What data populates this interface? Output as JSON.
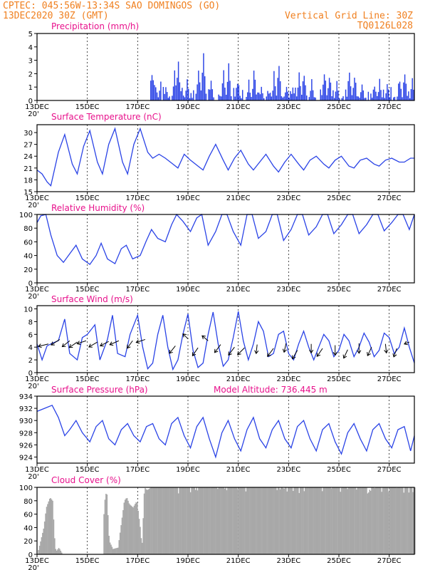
{
  "header": {
    "left_line1": "CPTEC:   045:56W-13:34S  SAO DOMINGOS (GO)",
    "left_line2": "13DEC2020 30Z (GMT)",
    "right_line1": "Vertical Grid Line: 30Z",
    "right_line2": "TQ0126L028"
  },
  "colors": {
    "header": "#f08020",
    "titles": "#e8128c",
    "series": "#2a43e6",
    "bars": "#2a43e6",
    "cloud": "#a8a8a8"
  },
  "x_axis": {
    "labels": [
      "13DEC",
      "15DEC",
      "17DEC",
      "19DEC",
      "21DEC",
      "23DEC",
      "25DEC",
      "27DEC"
    ],
    "edge_label": "20'"
  },
  "chart_data": [
    {
      "type": "bar",
      "title": "Precipitation (mm/h)",
      "ylim": [
        0,
        5
      ],
      "yticks": [
        0,
        1,
        2,
        3,
        4,
        5
      ],
      "bursts": [
        {
          "day": 4.55,
          "peak": 3.4
        },
        {
          "day": 4.6,
          "peak": 2.8
        },
        {
          "day": 5.1,
          "peak": 1.4
        },
        {
          "day": 5.45,
          "peak": 2.9
        },
        {
          "day": 5.6,
          "peak": 4.3
        },
        {
          "day": 5.95,
          "peak": 1.8
        },
        {
          "day": 6.4,
          "peak": 3.1
        },
        {
          "day": 6.6,
          "peak": 4.9
        },
        {
          "day": 6.9,
          "peak": 1.5
        },
        {
          "day": 7.4,
          "peak": 2.6
        },
        {
          "day": 7.6,
          "peak": 3.5
        },
        {
          "day": 7.95,
          "peak": 2.2
        },
        {
          "day": 8.4,
          "peak": 1.7
        },
        {
          "day": 8.6,
          "peak": 2.9
        },
        {
          "day": 8.9,
          "peak": 1.5
        },
        {
          "day": 9.4,
          "peak": 2.5
        },
        {
          "day": 9.6,
          "peak": 3.0
        },
        {
          "day": 9.9,
          "peak": 1.9
        },
        {
          "day": 10.4,
          "peak": 2.2
        },
        {
          "day": 10.6,
          "peak": 2.6
        },
        {
          "day": 10.9,
          "peak": 1.6
        },
        {
          "day": 11.4,
          "peak": 2.7
        },
        {
          "day": 11.6,
          "peak": 2.3
        },
        {
          "day": 11.9,
          "peak": 1.9
        },
        {
          "day": 12.4,
          "peak": 2.6
        },
        {
          "day": 12.6,
          "peak": 2.4
        },
        {
          "day": 12.9,
          "peak": 1.7
        },
        {
          "day": 13.4,
          "peak": 2.0
        },
        {
          "day": 13.6,
          "peak": 2.1
        },
        {
          "day": 13.9,
          "peak": 1.5
        },
        {
          "day": 14.4,
          "peak": 2.2
        },
        {
          "day": 14.6,
          "peak": 2.4
        },
        {
          "day": 14.9,
          "peak": 1.7
        }
      ]
    },
    {
      "type": "line",
      "title": "Surface Temperature (nC)",
      "ylim": [
        15,
        32
      ],
      "yticks": [
        15,
        18,
        21,
        24,
        27,
        30
      ],
      "x": [
        0,
        0.2,
        0.4,
        0.55,
        0.85,
        1.1,
        1.4,
        1.6,
        1.85,
        2.1,
        2.4,
        2.6,
        2.85,
        3.1,
        3.4,
        3.6,
        3.85,
        4.1,
        4.4,
        4.6,
        4.85,
        5.1,
        5.4,
        5.6,
        5.85,
        6.1,
        6.4,
        6.6,
        6.85,
        7.1,
        7.4,
        7.6,
        7.85,
        8.1,
        8.4,
        8.6,
        8.85,
        9.1,
        9.4,
        9.6,
        9.85,
        10.1,
        10.4,
        10.6,
        10.85,
        11.1,
        11.4,
        11.6,
        11.85,
        12.1,
        12.4,
        12.6,
        12.85,
        13.1,
        13.4,
        13.6,
        13.85,
        14.1,
        14.4,
        14.6,
        14.85,
        15.0
      ],
      "y": [
        20.5,
        19.5,
        17.5,
        16.5,
        25.0,
        29.5,
        22.0,
        19.5,
        26.5,
        30.5,
        22.5,
        19.5,
        27.0,
        31.0,
        22.5,
        19.5,
        27.0,
        31.0,
        25.0,
        23.5,
        24.5,
        23.5,
        22.0,
        21.0,
        24.5,
        23.0,
        21.5,
        20.5,
        24.0,
        27.0,
        23.0,
        20.5,
        23.5,
        25.5,
        22.0,
        20.5,
        22.5,
        24.5,
        21.5,
        20.0,
        22.5,
        24.5,
        22.0,
        20.5,
        23.0,
        24.0,
        22.0,
        21.0,
        23.0,
        24.0,
        21.5,
        21.0,
        23.0,
        23.5,
        22.0,
        21.5,
        23.0,
        23.5,
        22.5,
        22.5,
        23.5,
        23.5
      ]
    },
    {
      "type": "line",
      "title": "Relative Humidity (%)",
      "ylim": [
        0,
        100
      ],
      "yticks": [
        0,
        20,
        40,
        60,
        80,
        100
      ],
      "x": [
        0,
        0.15,
        0.35,
        0.55,
        0.8,
        1.05,
        1.35,
        1.55,
        1.8,
        2.1,
        2.35,
        2.55,
        2.8,
        3.1,
        3.35,
        3.55,
        3.8,
        4.1,
        4.35,
        4.55,
        4.8,
        5.1,
        5.35,
        5.55,
        5.8,
        6.1,
        6.35,
        6.55,
        6.8,
        7.1,
        7.35,
        7.55,
        7.8,
        8.1,
        8.35,
        8.55,
        8.8,
        9.1,
        9.35,
        9.55,
        9.8,
        10.1,
        10.35,
        10.55,
        10.8,
        11.1,
        11.35,
        11.55,
        11.8,
        12.1,
        12.35,
        12.55,
        12.8,
        13.1,
        13.35,
        13.55,
        13.8,
        14.1,
        14.35,
        14.55,
        14.8,
        15.0
      ],
      "y": [
        88,
        98,
        100,
        70,
        40,
        30,
        45,
        55,
        35,
        27,
        40,
        58,
        35,
        28,
        50,
        55,
        35,
        40,
        62,
        78,
        65,
        60,
        85,
        100,
        90,
        75,
        95,
        100,
        55,
        75,
        100,
        100,
        75,
        55,
        100,
        100,
        65,
        75,
        100,
        100,
        62,
        78,
        100,
        100,
        70,
        82,
        100,
        100,
        72,
        85,
        100,
        100,
        72,
        85,
        100,
        100,
        76,
        88,
        100,
        100,
        78,
        100
      ]
    },
    {
      "type": "line",
      "title": "Surface Wind (m/s)",
      "ylim": [
        0,
        10.5
      ],
      "yticks": [
        0,
        2,
        4,
        6,
        8,
        10
      ],
      "x": [
        0,
        0.2,
        0.4,
        0.6,
        0.85,
        1.1,
        1.3,
        1.6,
        1.8,
        2.0,
        2.3,
        2.5,
        2.8,
        3.0,
        3.2,
        3.5,
        3.7,
        4.0,
        4.2,
        4.4,
        4.6,
        4.8,
        5.0,
        5.2,
        5.4,
        5.6,
        5.8,
        6.0,
        6.2,
        6.4,
        6.6,
        6.8,
        7.0,
        7.2,
        7.4,
        7.6,
        7.8,
        8.0,
        8.2,
        8.4,
        8.6,
        8.8,
        9.0,
        9.2,
        9.4,
        9.6,
        9.8,
        10.0,
        10.2,
        10.4,
        10.6,
        10.8,
        11.0,
        11.2,
        11.4,
        11.6,
        11.8,
        12.0,
        12.2,
        12.4,
        12.6,
        12.8,
        13.0,
        13.2,
        13.4,
        13.6,
        13.8,
        14.0,
        14.2,
        14.4,
        14.6,
        14.8,
        15.0
      ],
      "y": [
        4.5,
        2.0,
        4.2,
        4.6,
        5.0,
        8.4,
        3.0,
        2.0,
        5.5,
        6.0,
        7.5,
        2.0,
        5.2,
        9.0,
        3.0,
        2.5,
        6.0,
        9.0,
        4.0,
        0.6,
        1.5,
        6.0,
        9.0,
        4.0,
        0.5,
        2.0,
        6.0,
        9.2,
        3.5,
        0.8,
        1.5,
        6.0,
        9.5,
        4.5,
        1.0,
        2.0,
        5.5,
        9.6,
        5.0,
        2.0,
        4.5,
        8.0,
        6.5,
        2.5,
        3.0,
        6.0,
        6.5,
        3.0,
        2.0,
        4.5,
        6.5,
        4.0,
        2.0,
        4.0,
        6.0,
        5.0,
        2.5,
        3.5,
        6.0,
        5.0,
        2.5,
        4.0,
        6.2,
        4.8,
        2.5,
        3.5,
        6.2,
        5.5,
        3.0,
        4.0,
        7.0,
        4.0,
        1.5
      ],
      "vectors": [
        {
          "day": 0.45,
          "speed": 4.5,
          "u": -1.0,
          "v": -0.25
        },
        {
          "day": 0.9,
          "speed": 5.2,
          "u": -0.85,
          "v": -0.55
        },
        {
          "day": 1.3,
          "speed": 5.0,
          "u": -0.75,
          "v": -0.6
        },
        {
          "day": 1.6,
          "speed": 4.8,
          "u": -0.8,
          "v": -0.55
        },
        {
          "day": 1.95,
          "speed": 5.0,
          "u": -0.9,
          "v": -0.3
        },
        {
          "day": 2.4,
          "speed": 4.8,
          "u": -0.85,
          "v": -0.5
        },
        {
          "day": 2.85,
          "speed": 4.9,
          "u": -0.85,
          "v": -0.45
        },
        {
          "day": 3.25,
          "speed": 5.0,
          "u": -0.9,
          "v": -0.4
        },
        {
          "day": 3.8,
          "speed": 5.0,
          "u": -0.55,
          "v": -0.75
        },
        {
          "day": 4.3,
          "speed": 5.2,
          "u": -0.9,
          "v": -0.3
        },
        {
          "day": 5.5,
          "speed": 4.2,
          "u": -0.6,
          "v": -0.75
        },
        {
          "day": 6.0,
          "speed": 5.3,
          "u": -0.5,
          "v": 0.5
        },
        {
          "day": 6.4,
          "speed": 3.9,
          "u": -0.55,
          "v": -0.8
        },
        {
          "day": 6.8,
          "speed": 5.0,
          "u": -0.6,
          "v": 0.5
        },
        {
          "day": 7.3,
          "speed": 4.4,
          "u": -0.6,
          "v": -0.8
        },
        {
          "day": 7.85,
          "speed": 4.0,
          "u": -0.6,
          "v": -0.8
        },
        {
          "day": 8.25,
          "speed": 3.9,
          "u": -0.7,
          "v": -0.7
        },
        {
          "day": 8.75,
          "speed": 4.4,
          "u": -0.1,
          "v": -0.9
        },
        {
          "day": 9.4,
          "speed": 3.8,
          "u": -0.6,
          "v": -0.8
        },
        {
          "day": 9.9,
          "speed": 4.6,
          "u": -0.2,
          "v": -0.9
        },
        {
          "day": 10.35,
          "speed": 3.5,
          "u": -0.5,
          "v": -0.85
        },
        {
          "day": 10.9,
          "speed": 4.5,
          "u": 0.0,
          "v": -0.9
        },
        {
          "day": 11.35,
          "speed": 3.8,
          "u": -0.55,
          "v": -0.8
        },
        {
          "day": 11.85,
          "speed": 4.3,
          "u": 0.0,
          "v": -1.0
        },
        {
          "day": 12.35,
          "speed": 3.6,
          "u": -0.4,
          "v": -0.85
        },
        {
          "day": 12.8,
          "speed": 4.6,
          "u": 0.0,
          "v": -1.0
        },
        {
          "day": 13.3,
          "speed": 4.0,
          "u": -0.4,
          "v": -0.85
        },
        {
          "day": 13.85,
          "speed": 4.5,
          "u": 0.1,
          "v": -0.9
        },
        {
          "day": 14.3,
          "speed": 3.8,
          "u": -0.3,
          "v": -0.85
        },
        {
          "day": 14.8,
          "speed": 4.8,
          "u": -0.5,
          "v": -0.2
        }
      ]
    },
    {
      "type": "line",
      "title": "Surface Pressure (hPa)",
      "annotation": "Model Altitude: 736.445  m",
      "ylim": [
        923,
        934
      ],
      "yticks": [
        924,
        926,
        928,
        930,
        932,
        934
      ],
      "x": [
        0,
        0.3,
        0.6,
        0.85,
        1.1,
        1.3,
        1.55,
        1.8,
        2.1,
        2.35,
        2.6,
        2.85,
        3.1,
        3.35,
        3.6,
        3.85,
        4.1,
        4.35,
        4.6,
        4.85,
        5.1,
        5.35,
        5.6,
        5.85,
        6.1,
        6.35,
        6.6,
        6.85,
        7.1,
        7.35,
        7.6,
        7.85,
        8.1,
        8.35,
        8.6,
        8.85,
        9.1,
        9.35,
        9.6,
        9.85,
        10.1,
        10.35,
        10.6,
        10.85,
        11.1,
        11.35,
        11.6,
        11.85,
        12.1,
        12.35,
        12.6,
        12.85,
        13.1,
        13.35,
        13.6,
        13.85,
        14.1,
        14.35,
        14.6,
        14.85,
        15.0
      ],
      "y": [
        931.5,
        932.0,
        932.5,
        930.5,
        927.5,
        928.5,
        930.0,
        928.0,
        926.5,
        929.0,
        930.0,
        927.0,
        926.0,
        928.5,
        929.5,
        927.5,
        926.5,
        929.0,
        929.5,
        927.0,
        926.0,
        929.5,
        930.5,
        927.5,
        925.5,
        929.0,
        930.5,
        927.0,
        924.0,
        928.0,
        930.0,
        927.0,
        925.0,
        928.5,
        930.5,
        927.0,
        925.5,
        928.5,
        930.0,
        927.0,
        925.5,
        929.0,
        930.0,
        927.0,
        925.0,
        928.5,
        929.5,
        926.5,
        924.5,
        928.0,
        929.5,
        927.0,
        925.0,
        928.5,
        929.5,
        927.0,
        925.5,
        928.5,
        929.0,
        925.0,
        927.5
      ]
    },
    {
      "type": "bar",
      "title": "Cloud Cover (%)",
      "ylim": [
        0,
        100
      ],
      "yticks": [
        0,
        20,
        40,
        60,
        80,
        100
      ],
      "x": [
        0,
        0.25,
        0.35,
        0.5,
        0.6,
        0.7,
        0.75,
        0.85,
        1.0,
        2.6,
        2.65,
        2.75,
        2.85,
        3.0,
        3.2,
        3.45,
        3.55,
        3.65,
        3.8,
        3.95,
        4.1,
        4.15,
        4.25,
        4.35,
        4.45,
        4.5,
        5.0,
        15.0
      ],
      "y": [
        0,
        40,
        70,
        85,
        80,
        10,
        5,
        10,
        0,
        0,
        75,
        97,
        20,
        8,
        10,
        80,
        85,
        75,
        70,
        80,
        35,
        8,
        100,
        96,
        98,
        100,
        100,
        100
      ]
    }
  ]
}
